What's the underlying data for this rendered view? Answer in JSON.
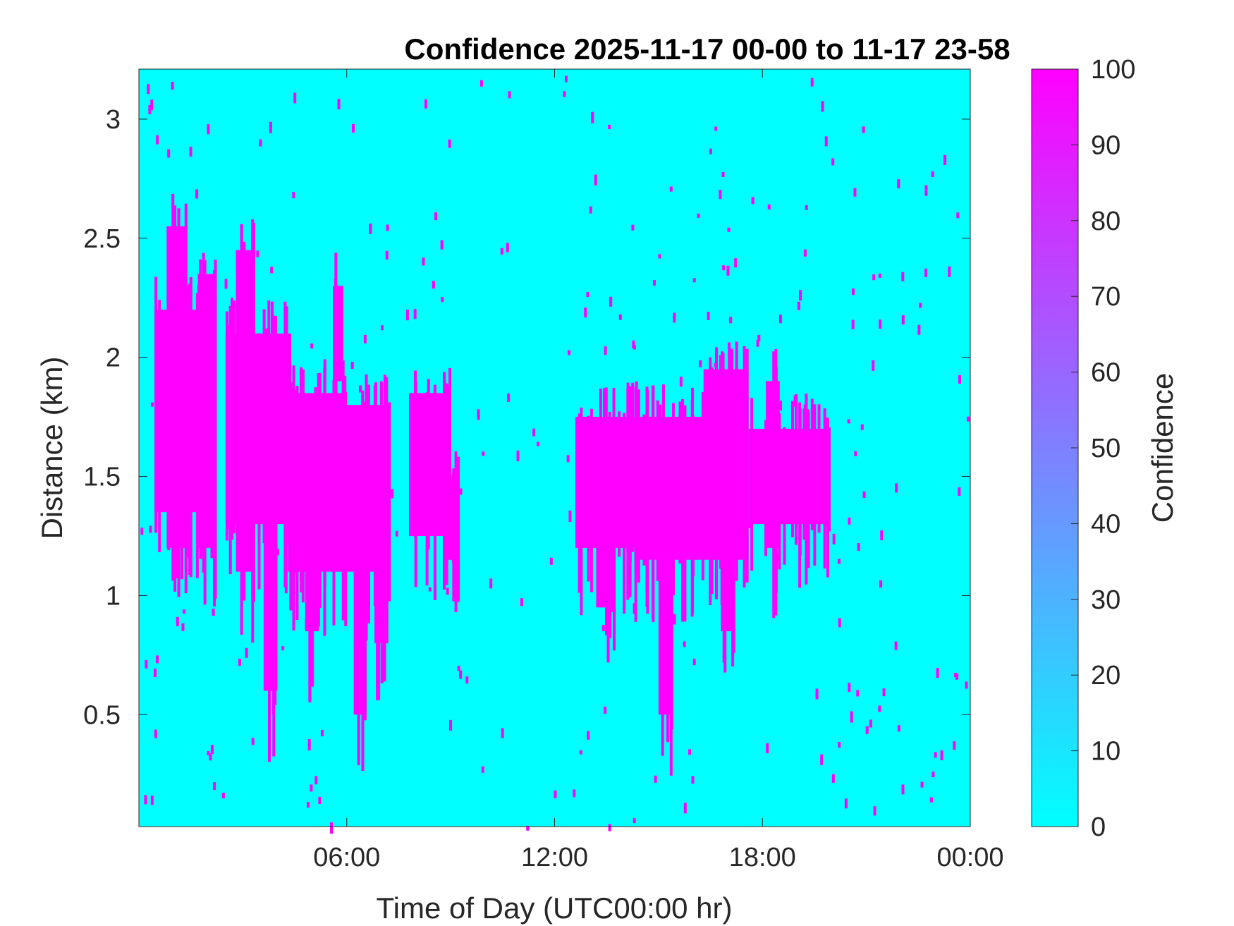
{
  "chart_data": {
    "type": "heatmap",
    "title": "Confidence 2025-11-17 00-00 to 11-17 23-58",
    "xlabel": "Time of Day (UTC00:00 hr)",
    "ylabel": "Distance (km)",
    "colorbar_label": "Confidence",
    "xlim": [
      0,
      24
    ],
    "ylim": [
      0.03,
      3.21
    ],
    "x_ticks": [
      6,
      12,
      18,
      24
    ],
    "x_tick_labels": [
      "06:00",
      "12:00",
      "18:00",
      "00:00"
    ],
    "y_ticks": [
      0.5,
      1,
      1.5,
      2,
      2.5,
      3
    ],
    "y_tick_labels": [
      "0.5",
      "1",
      "1.5",
      "2",
      "2.5",
      "3"
    ],
    "clim": [
      0,
      100
    ],
    "colorbar_ticks": [
      0,
      10,
      20,
      30,
      40,
      50,
      60,
      70,
      80,
      90,
      100
    ],
    "colorbar_tick_labels": [
      "0",
      "10",
      "20",
      "30",
      "40",
      "50",
      "60",
      "70",
      "80",
      "90",
      "100"
    ],
    "colormap": [
      "#00ffff",
      "#ff00ff"
    ],
    "background_value": 0,
    "cells": [
      {
        "x0": 0.45,
        "x1": 2.2,
        "y0": 1.35,
        "y1": 2.2,
        "value": 100
      },
      {
        "x0": 0.8,
        "x1": 1.4,
        "y0": 1.2,
        "y1": 2.55,
        "value": 100
      },
      {
        "x0": 1.7,
        "x1": 2.2,
        "y0": 1.2,
        "y1": 2.35,
        "value": 100
      },
      {
        "x0": 2.5,
        "x1": 4.4,
        "y0": 1.3,
        "y1": 2.1,
        "value": 100
      },
      {
        "x0": 2.8,
        "x1": 3.3,
        "y0": 1.1,
        "y1": 2.45,
        "value": 100
      },
      {
        "x0": 3.6,
        "x1": 4.0,
        "y0": 0.6,
        "y1": 1.6,
        "value": 100
      },
      {
        "x0": 4.3,
        "x1": 6.0,
        "y0": 1.1,
        "y1": 1.85,
        "value": 100
      },
      {
        "x0": 4.8,
        "x1": 5.2,
        "y0": 0.85,
        "y1": 1.3,
        "value": 100
      },
      {
        "x0": 5.6,
        "x1": 5.9,
        "y0": 1.9,
        "y1": 2.3,
        "value": 100
      },
      {
        "x0": 6.0,
        "x1": 7.2,
        "y0": 1.1,
        "y1": 1.8,
        "value": 100
      },
      {
        "x0": 6.2,
        "x1": 6.5,
        "y0": 0.5,
        "y1": 1.1,
        "value": 100
      },
      {
        "x0": 6.8,
        "x1": 7.2,
        "y0": 0.8,
        "y1": 1.2,
        "value": 100
      },
      {
        "x0": 7.8,
        "x1": 9.0,
        "y0": 1.25,
        "y1": 1.85,
        "value": 100
      },
      {
        "x0": 8.8,
        "x1": 9.2,
        "y0": 1.15,
        "y1": 1.5,
        "value": 100
      },
      {
        "x0": 12.6,
        "x1": 14.3,
        "y0": 1.2,
        "y1": 1.75,
        "value": 100
      },
      {
        "x0": 13.2,
        "x1": 13.7,
        "y0": 0.95,
        "y1": 1.3,
        "value": 100
      },
      {
        "x0": 14.3,
        "x1": 16.3,
        "y0": 1.15,
        "y1": 1.75,
        "value": 100
      },
      {
        "x0": 15.0,
        "x1": 15.4,
        "y0": 0.5,
        "y1": 1.2,
        "value": 100
      },
      {
        "x0": 16.3,
        "x1": 17.6,
        "y0": 1.15,
        "y1": 1.95,
        "value": 100
      },
      {
        "x0": 16.8,
        "x1": 17.2,
        "y0": 0.85,
        "y1": 1.25,
        "value": 100
      },
      {
        "x0": 17.6,
        "x1": 19.9,
        "y0": 1.3,
        "y1": 1.7,
        "value": 100
      },
      {
        "x0": 18.1,
        "x1": 18.5,
        "y0": 1.2,
        "y1": 1.9,
        "value": 100
      }
    ]
  }
}
